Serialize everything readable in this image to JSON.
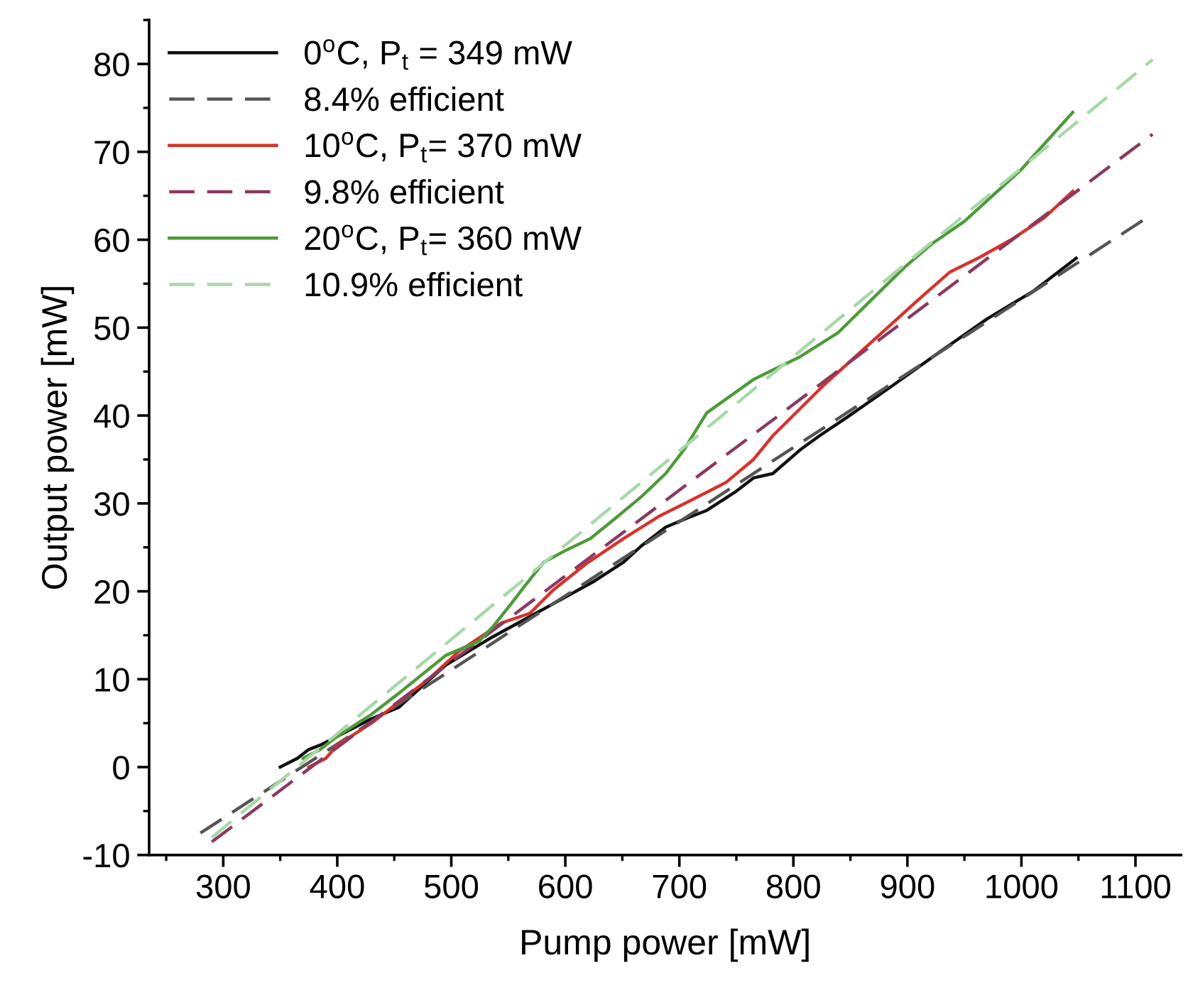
{
  "chart_data": {
    "type": "line",
    "xlabel": "Pump power [mW]",
    "ylabel": "Output power [mW]",
    "xlim": [
      235,
      1140
    ],
    "ylim": [
      -10,
      85
    ],
    "xticks": [
      300,
      400,
      500,
      600,
      700,
      800,
      900,
      1000,
      1100
    ],
    "yticks": [
      -10,
      0,
      10,
      20,
      30,
      40,
      50,
      60,
      70,
      80
    ],
    "grid": false,
    "legend": "top left",
    "marker": "none",
    "series": [
      {
        "name": "0$^{o}$C, P$_{t}$ = 349 mW",
        "color": "#111111",
        "line_style": "solid",
        "x": [
          350,
          365,
          375,
          385,
          400,
          430,
          454,
          495,
          536,
          577,
          626,
          651,
          667,
          688,
          708,
          724,
          749,
          765,
          782,
          806,
          823,
          847,
          888,
          929,
          970,
          1011,
          1048
        ],
        "values": [
          0,
          1,
          2,
          2.5,
          3.5,
          5.5,
          6.8,
          11.6,
          14.8,
          17.7,
          21.2,
          23.3,
          25.2,
          27.3,
          28.4,
          29.2,
          31.3,
          32.9,
          33.4,
          36.1,
          37.7,
          39.8,
          43.5,
          47.3,
          51.0,
          54.2,
          57.9
        ]
      },
      {
        "name": "8.4% efficient",
        "color": "#555555",
        "line_style": "dashed",
        "x": [
          280,
          1110
        ],
        "values": [
          -7.5,
          62.5
        ]
      },
      {
        "name": "10$^{o}$C, P$_{t}$= 370 mW",
        "color": "#d6332b",
        "line_style": "solid",
        "x": [
          375,
          390,
          400,
          430,
          460,
          480,
          507,
          544,
          569,
          589,
          618,
          651,
          683,
          708,
          741,
          765,
          782,
          827,
          868,
          909,
          937,
          962,
          991,
          1020,
          1045
        ],
        "values": [
          0,
          1,
          2.5,
          5,
          8,
          10,
          13.2,
          16.4,
          17.5,
          20.1,
          23.1,
          26.0,
          28.6,
          30.2,
          32.4,
          35.0,
          37.7,
          43.5,
          48.3,
          53.1,
          56.3,
          57.9,
          60.0,
          62.5,
          65.5
        ]
      },
      {
        "name": "9.8% efficient",
        "color": "#8b3a62",
        "line_style": "dashed",
        "x": [
          290,
          1115
        ],
        "values": [
          -8.5,
          72
        ]
      },
      {
        "name": "20$^{o}$C, P$_{t}$= 360 mW",
        "color": "#4e9a3a",
        "line_style": "solid",
        "x": [
          370,
          385,
          400,
          430,
          454,
          495,
          524,
          536,
          552,
          565,
          581,
          601,
          622,
          642,
          667,
          688,
          704,
          724,
          765,
          806,
          839,
          868,
          897,
          921,
          950,
          1000,
          1045
        ],
        "values": [
          1,
          2,
          3.5,
          6,
          8.4,
          12.7,
          14.3,
          15.9,
          18.5,
          20.7,
          23.3,
          24.7,
          26.0,
          28.1,
          30.8,
          33.4,
          36.1,
          40.3,
          44.1,
          46.7,
          49.4,
          53.1,
          56.8,
          59.5,
          62.1,
          68,
          74.5
        ]
      },
      {
        "name": "10.9% efficient",
        "color": "#a8d8a8",
        "line_style": "dashed",
        "x": [
          290,
          1115
        ],
        "values": [
          -8,
          80.5
        ]
      }
    ]
  }
}
